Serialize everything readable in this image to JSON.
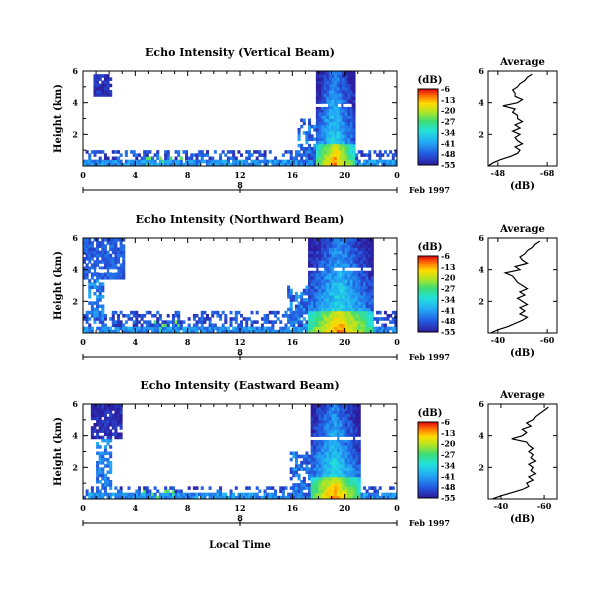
{
  "figure": {
    "bottom_label": "Local Time",
    "date_label": "Feb 1997"
  },
  "chart_data": [
    {
      "type": "heatmap",
      "title": "Echo Intensity (Vertical Beam)",
      "ylabel": "Height (km)",
      "xlabel": "Local Time",
      "x_ticks": [
        "0",
        "4",
        "8",
        "12",
        "16",
        "20",
        "0"
      ],
      "xlim": [
        0,
        24
      ],
      "y_ticks": [
        "6",
        "4",
        "2"
      ],
      "ylim": [
        0,
        6
      ],
      "day_ticks": [
        "8"
      ],
      "date_label": "Feb 1997",
      "colorbar": {
        "label": "(dB)",
        "ticks": [
          "-6",
          "-13",
          "-20",
          "-27",
          "-34",
          "-41",
          "-48",
          "-55"
        ],
        "range": [
          -55,
          -6
        ]
      },
      "features": {
        "core_time_range": [
          17.7,
          20.6
        ],
        "layer_heights_km": [
          3.8
        ],
        "layer_time_ranges": [
          [
            17.7,
            20.6
          ]
        ],
        "early_cloud": {
          "time_range": [
            0.8,
            2.0
          ],
          "height_range": [
            4.4,
            5.8
          ],
          "intensity_db": -50
        },
        "low_layer_time_range": [
          0.0,
          24.0
        ],
        "low_layer_max_km": 0.9,
        "rain_shaft_max_db": -10
      },
      "average_profile": {
        "title": "Average",
        "xlabel": "(dB)",
        "x_ticks": [
          "-48",
          "-68"
        ],
        "xlim": [
          -44,
          -72
        ],
        "y_ticks": [
          "6",
          "4",
          "2"
        ],
        "ylim": [
          0,
          6
        ],
        "height_km": [
          0.0,
          0.2,
          0.4,
          0.6,
          0.8,
          1.0,
          1.2,
          1.4,
          1.6,
          1.8,
          2.0,
          2.2,
          2.4,
          2.6,
          2.8,
          3.0,
          3.2,
          3.4,
          3.6,
          3.8,
          4.0,
          4.2,
          4.4,
          4.6,
          4.8,
          5.0,
          5.2,
          5.4,
          5.6,
          5.8
        ],
        "db": [
          -44,
          -46,
          -49,
          -53,
          -56,
          -57,
          -55,
          -58,
          -56,
          -55,
          -57,
          -54,
          -57,
          -55,
          -58,
          -56,
          -56,
          -54,
          -55,
          -50,
          -56,
          -58,
          -55,
          -55,
          -54,
          -56,
          -57,
          -59,
          -60,
          -62
        ]
      }
    },
    {
      "type": "heatmap",
      "title": "Echo Intensity (Northward Beam)",
      "ylabel": "Height (km)",
      "xlabel": "Local Time",
      "x_ticks": [
        "0",
        "4",
        "8",
        "12",
        "16",
        "20",
        "0"
      ],
      "xlim": [
        0,
        24
      ],
      "y_ticks": [
        "6",
        "4",
        "2"
      ],
      "ylim": [
        0,
        6
      ],
      "day_ticks": [
        "8"
      ],
      "date_label": "Feb 1997",
      "colorbar": {
        "label": "(dB)",
        "ticks": [
          "-6",
          "-13",
          "-20",
          "-27",
          "-34",
          "-41",
          "-48",
          "-55"
        ],
        "range": [
          -55,
          -6
        ]
      },
      "features": {
        "core_time_range": [
          17.0,
          22.0
        ],
        "layer_heights_km": [
          3.9,
          4.0
        ],
        "layer_time_ranges": [
          [
            0.6,
            2.6
          ],
          [
            17.0,
            22.0
          ]
        ],
        "early_cloud": {
          "time_range": [
            0.0,
            3.2
          ],
          "height_range": [
            3.4,
            6.0
          ],
          "intensity_db": -45
        },
        "low_layer_time_range": [
          0.0,
          24.0
        ],
        "low_layer_max_km": 1.3,
        "rain_shaft_max_db": -10
      },
      "average_profile": {
        "title": "Average",
        "xlabel": "(dB)",
        "x_ticks": [
          "-40",
          "-60"
        ],
        "xlim": [
          -36,
          -64
        ],
        "y_ticks": [
          "6",
          "4",
          "2"
        ],
        "ylim": [
          0,
          6
        ],
        "height_km": [
          0.0,
          0.2,
          0.4,
          0.6,
          0.8,
          1.0,
          1.2,
          1.4,
          1.6,
          1.8,
          2.0,
          2.2,
          2.4,
          2.6,
          2.8,
          3.0,
          3.2,
          3.4,
          3.6,
          3.8,
          4.0,
          4.2,
          4.4,
          4.6,
          4.8,
          5.0,
          5.2,
          5.4,
          5.6,
          5.8
        ],
        "db": [
          -37,
          -40,
          -44,
          -47,
          -50,
          -52,
          -49,
          -51,
          -49,
          -52,
          -50,
          -48,
          -51,
          -49,
          -52,
          -50,
          -48,
          -47,
          -46,
          -43,
          -49,
          -47,
          -52,
          -50,
          -49,
          -51,
          -52,
          -54,
          -55,
          -57
        ]
      }
    },
    {
      "type": "heatmap",
      "title": "Echo Intensity (Eastward Beam)",
      "ylabel": "Height (km)",
      "xlabel": "Local Time",
      "x_ticks": [
        "0",
        "4",
        "8",
        "12",
        "16",
        "20",
        "0"
      ],
      "xlim": [
        0,
        24
      ],
      "y_ticks": [
        "6",
        "4",
        "2"
      ],
      "ylim": [
        0,
        6
      ],
      "day_ticks": [
        "8"
      ],
      "date_label": "Feb 1997",
      "colorbar": {
        "label": "(dB)",
        "ticks": [
          "-6",
          "-13",
          "-20",
          "-27",
          "-34",
          "-41",
          "-48",
          "-55"
        ],
        "range": [
          -55,
          -6
        ]
      },
      "features": {
        "core_time_range": [
          17.2,
          21.0
        ],
        "layer_heights_km": [
          3.8
        ],
        "layer_time_ranges": [
          [
            17.2,
            21.0
          ]
        ],
        "early_cloud": {
          "time_range": [
            0.6,
            3.0
          ],
          "height_range": [
            3.8,
            6.0
          ],
          "intensity_db": -50
        },
        "low_layer_time_range": [
          0.0,
          24.0
        ],
        "low_layer_max_km": 0.8,
        "rain_shaft_max_db": -10
      },
      "average_profile": {
        "title": "Average",
        "xlabel": "(dB)",
        "x_ticks": [
          "-40",
          "-60"
        ],
        "xlim": [
          -34,
          -66
        ],
        "y_ticks": [
          "6",
          "4",
          "2"
        ],
        "ylim": [
          0,
          6
        ],
        "height_km": [
          0.0,
          0.2,
          0.4,
          0.6,
          0.8,
          1.0,
          1.2,
          1.4,
          1.6,
          1.8,
          2.0,
          2.2,
          2.4,
          2.6,
          2.8,
          3.0,
          3.2,
          3.4,
          3.6,
          3.8,
          4.0,
          4.2,
          4.4,
          4.6,
          4.8,
          5.0,
          5.2,
          5.4,
          5.6,
          5.8
        ],
        "db": [
          -36,
          -40,
          -45,
          -50,
          -53,
          -52,
          -55,
          -53,
          -56,
          -54,
          -55,
          -53,
          -56,
          -54,
          -55,
          -53,
          -55,
          -53,
          -52,
          -45,
          -50,
          -52,
          -50,
          -54,
          -52,
          -55,
          -56,
          -58,
          -60,
          -62
        ]
      }
    }
  ]
}
